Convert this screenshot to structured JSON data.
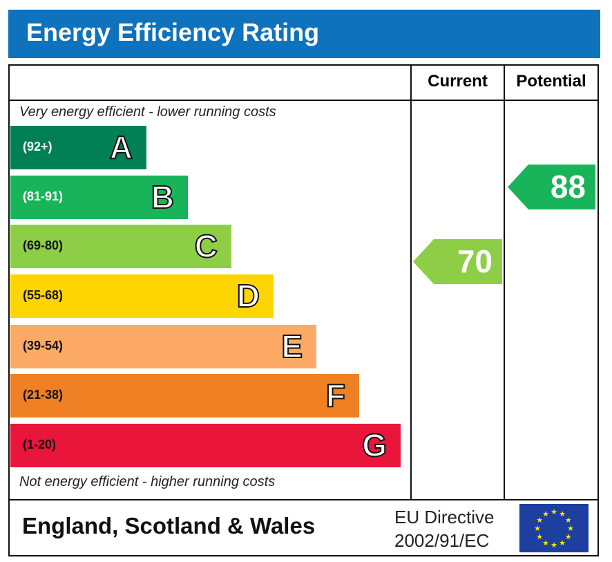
{
  "title": "Energy Efficiency Rating",
  "columns": [
    "Current",
    "Potential"
  ],
  "top_note": "Very energy efficient - lower running costs",
  "bottom_note": "Not energy efficient - higher running costs",
  "footer": {
    "region": "England, Scotland & Wales",
    "directive_line1": "EU Directive",
    "directive_line2": "2002/91/EC",
    "flag_icon": "eu-flag-icon"
  },
  "chart_data": {
    "type": "bar",
    "bands": [
      {
        "letter": "A",
        "range": "(92+)",
        "min": 92,
        "color": "#008054",
        "text_color": "#ffffff"
      },
      {
        "letter": "B",
        "range": "(81-91)",
        "min": 81,
        "color": "#19b459",
        "text_color": "#ffffff"
      },
      {
        "letter": "C",
        "range": "(69-80)",
        "min": 69,
        "color": "#8dce46",
        "text_color": "#111111"
      },
      {
        "letter": "D",
        "range": "(55-68)",
        "min": 55,
        "color": "#ffd500",
        "text_color": "#111111"
      },
      {
        "letter": "E",
        "range": "(39-54)",
        "min": 39,
        "color": "#fcaa65",
        "text_color": "#111111"
      },
      {
        "letter": "F",
        "range": "(21-38)",
        "min": 21,
        "color": "#ef8023",
        "text_color": "#111111"
      },
      {
        "letter": "G",
        "range": "(1-20)",
        "min": 1,
        "color": "#e9153b",
        "text_color": "#111111"
      }
    ],
    "current": {
      "value": 70,
      "label": "70",
      "band": "C"
    },
    "potential": {
      "value": 88,
      "label": "88",
      "band": "B"
    }
  }
}
